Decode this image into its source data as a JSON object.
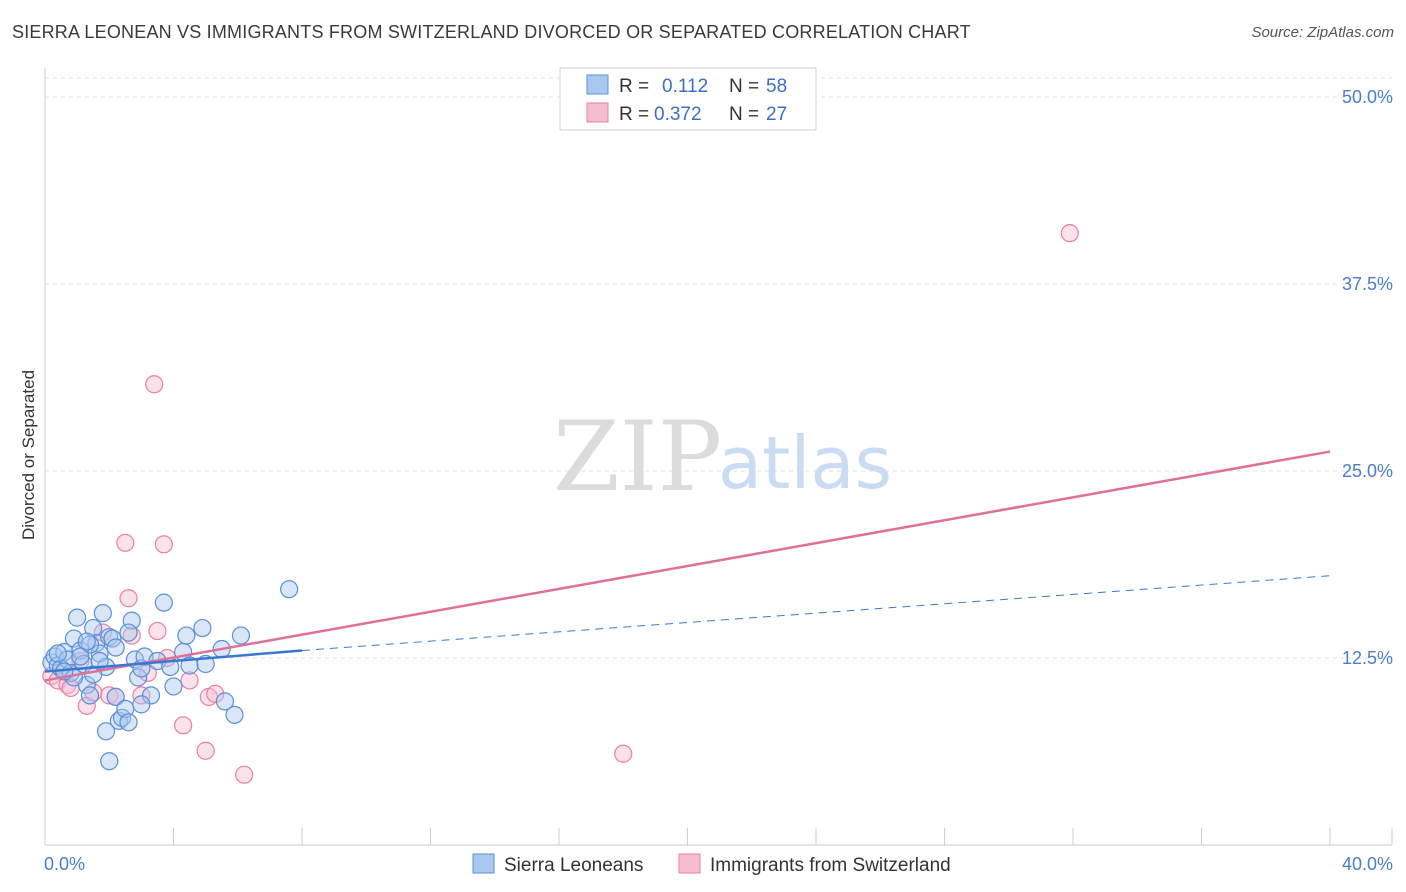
{
  "title": "SIERRA LEONEAN VS IMMIGRANTS FROM SWITZERLAND DIVORCED OR SEPARATED CORRELATION CHART",
  "source": "Source: ZipAtlas.com",
  "watermark": {
    "zip": "ZIP",
    "atlas": "atlas"
  },
  "colors": {
    "blue_fill": "#a9c8f0",
    "blue_stroke": "#5b8fd6",
    "blue_line": "#3a78d0",
    "pink_fill": "#f6bcd0",
    "pink_stroke": "#e97fa4",
    "pink_line": "#e0709a",
    "grid": "#e2e2e2",
    "axis": "#cccccc",
    "tick_label": "#4a7ec8"
  },
  "legend": {
    "series": [
      {
        "r_label": "R =",
        "r_value": "0.112",
        "n_label": "N =",
        "n_value": "58"
      },
      {
        "r_label": "R =",
        "r_value": "0.372",
        "n_label": "N =",
        "n_value": "27"
      }
    ]
  },
  "bottom_legend": [
    "Sierra Leoneans",
    "Immigrants from Switzerland"
  ],
  "chart_data": {
    "type": "scatter",
    "xlabel": "",
    "ylabel": "Divorced or Separated",
    "xlim": [
      0,
      40
    ],
    "ylim": [
      0,
      50
    ],
    "x_tick_labels": [
      {
        "value": 0,
        "label": "0.0%"
      },
      {
        "value": 40,
        "label": "40.0%"
      }
    ],
    "x_minor_ticks": [
      4,
      8,
      12,
      16,
      20,
      24,
      28,
      32,
      36,
      40
    ],
    "y_ticks": [
      {
        "value": 12.5,
        "label": "12.5%"
      },
      {
        "value": 25.0,
        "label": "25.0%"
      },
      {
        "value": 37.5,
        "label": "37.5%"
      },
      {
        "value": 50.0,
        "label": "50.0%"
      }
    ],
    "grid": true,
    "series": [
      {
        "name": "Sierra Leoneans",
        "r": 0.112,
        "n": 58,
        "trend": {
          "x0": 0,
          "y0": 11.6,
          "x_solid_end": 8,
          "y_solid_end": 13.0,
          "x1": 40,
          "y1": 18.0
        },
        "points": [
          [
            0.2,
            12.2
          ],
          [
            0.3,
            12.6
          ],
          [
            0.4,
            12.0
          ],
          [
            0.5,
            11.8
          ],
          [
            0.6,
            12.9
          ],
          [
            0.7,
            12.4
          ],
          [
            0.8,
            11.5
          ],
          [
            0.9,
            13.8
          ],
          [
            1.0,
            15.2
          ],
          [
            1.1,
            13.0
          ],
          [
            1.2,
            12.1
          ],
          [
            1.3,
            10.7
          ],
          [
            1.4,
            10.0
          ],
          [
            1.5,
            14.5
          ],
          [
            1.6,
            13.5
          ],
          [
            1.7,
            12.8
          ],
          [
            1.8,
            15.5
          ],
          [
            1.9,
            7.6
          ],
          [
            2.0,
            13.9
          ],
          [
            2.1,
            13.8
          ],
          [
            2.2,
            9.9
          ],
          [
            2.3,
            8.3
          ],
          [
            2.4,
            8.5
          ],
          [
            2.5,
            9.1
          ],
          [
            2.6,
            8.2
          ],
          [
            2.7,
            15.0
          ],
          [
            2.8,
            12.4
          ],
          [
            2.9,
            11.2
          ],
          [
            3.0,
            11.8
          ],
          [
            3.1,
            12.6
          ],
          [
            3.3,
            10.0
          ],
          [
            3.5,
            12.3
          ],
          [
            3.7,
            16.2
          ],
          [
            3.9,
            11.9
          ],
          [
            4.0,
            10.6
          ],
          [
            4.3,
            12.9
          ],
          [
            4.4,
            14.0
          ],
          [
            4.5,
            12.0
          ],
          [
            4.9,
            14.5
          ],
          [
            5.0,
            12.1
          ],
          [
            5.5,
            13.1
          ],
          [
            5.6,
            9.6
          ],
          [
            5.9,
            8.7
          ],
          [
            6.1,
            14.0
          ],
          [
            7.6,
            17.1
          ],
          [
            1.4,
            13.4
          ],
          [
            1.9,
            11.9
          ],
          [
            2.2,
            13.2
          ],
          [
            0.4,
            12.8
          ],
          [
            0.9,
            11.2
          ],
          [
            1.3,
            13.6
          ],
          [
            2.6,
            14.2
          ],
          [
            3.0,
            9.4
          ],
          [
            1.1,
            12.6
          ],
          [
            0.6,
            11.6
          ],
          [
            1.5,
            11.4
          ],
          [
            2.0,
            5.6
          ],
          [
            1.7,
            12.3
          ]
        ]
      },
      {
        "name": "Immigrants from Switzerland",
        "r": 0.372,
        "n": 27,
        "trend": {
          "x0": 0,
          "y0": 11.0,
          "x1": 40,
          "y1": 26.3
        },
        "points": [
          [
            0.2,
            11.3
          ],
          [
            0.4,
            11.0
          ],
          [
            0.7,
            10.7
          ],
          [
            0.8,
            10.5
          ],
          [
            1.1,
            12.3
          ],
          [
            1.3,
            9.3
          ],
          [
            1.5,
            10.2
          ],
          [
            1.8,
            14.2
          ],
          [
            2.0,
            10.0
          ],
          [
            2.2,
            9.9
          ],
          [
            2.5,
            20.2
          ],
          [
            2.6,
            16.5
          ],
          [
            2.7,
            14.0
          ],
          [
            3.0,
            10.0
          ],
          [
            3.2,
            11.5
          ],
          [
            3.4,
            30.8
          ],
          [
            3.5,
            14.3
          ],
          [
            3.7,
            20.1
          ],
          [
            3.8,
            12.5
          ],
          [
            4.3,
            8.0
          ],
          [
            4.5,
            11.0
          ],
          [
            5.0,
            6.3
          ],
          [
            5.1,
            9.9
          ],
          [
            5.3,
            10.1
          ],
          [
            6.2,
            4.7
          ],
          [
            18.0,
            6.1
          ],
          [
            31.9,
            40.9
          ]
        ]
      }
    ]
  }
}
